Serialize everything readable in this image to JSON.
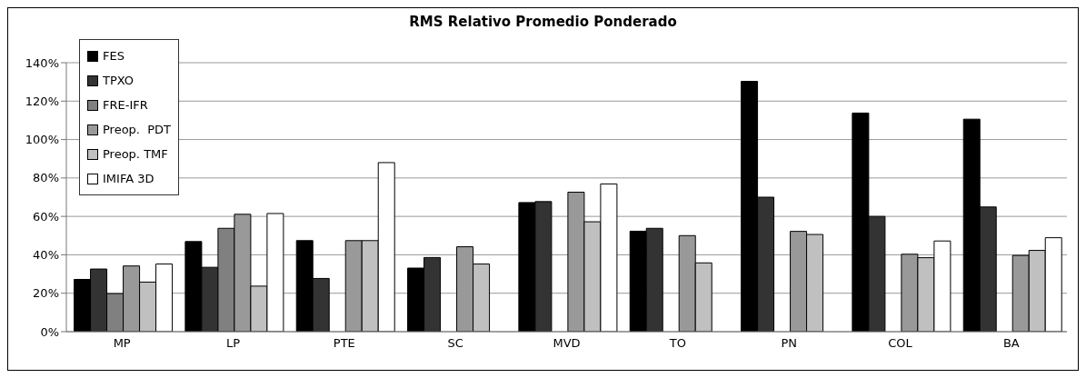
{
  "chart_data": {
    "type": "bar",
    "title": "RMS Relativo Promedio Ponderado",
    "categories": [
      "MP",
      "LP",
      "PTE",
      "SC",
      "MVD",
      "TO",
      "PN",
      "COL",
      "BA"
    ],
    "series": [
      {
        "name": "FES",
        "color": "#000000",
        "values": [
          27.2,
          46.9,
          47.4,
          33.1,
          67.2,
          52.3,
          130.3,
          113.8,
          110.6
        ]
      },
      {
        "name": "TPXO",
        "color": "#333333",
        "values": [
          32.6,
          33.5,
          27.7,
          38.6,
          67.7,
          53.8,
          70,
          60,
          64.9
        ]
      },
      {
        "name": "FRE-IFR",
        "color": "#808080",
        "values": [
          19.8,
          53.8,
          null,
          null,
          null,
          null,
          null,
          null,
          null
        ]
      },
      {
        "name": "Preop.  PDT",
        "color": "#999999",
        "values": [
          34.2,
          61.1,
          47.4,
          44.2,
          72.6,
          50,
          52.2,
          40.3,
          39.7
        ]
      },
      {
        "name": "Preop. TMF",
        "color": "#c0c0c0",
        "values": [
          25.8,
          23.7,
          47.4,
          35.2,
          57.2,
          35.8,
          50.6,
          38.5,
          42.3
        ]
      },
      {
        "name": "IMIFA 3D",
        "color": "#ffffff",
        "values": [
          35.2,
          61.5,
          88,
          null,
          76.9,
          null,
          null,
          47.2,
          48.9
        ]
      }
    ],
    "ylim": [
      0,
      140
    ],
    "yticks": [
      {
        "value": 0,
        "label": "0%"
      },
      {
        "value": 20,
        "label": "20%"
      },
      {
        "value": 40,
        "label": "40%"
      },
      {
        "value": 60,
        "label": "60%"
      },
      {
        "value": 80,
        "label": "80%"
      },
      {
        "value": 100,
        "label": "100%"
      },
      {
        "value": 120,
        "label": "120%"
      },
      {
        "value": 140,
        "label": "140%"
      }
    ],
    "grid": "y",
    "legend": "top left"
  }
}
